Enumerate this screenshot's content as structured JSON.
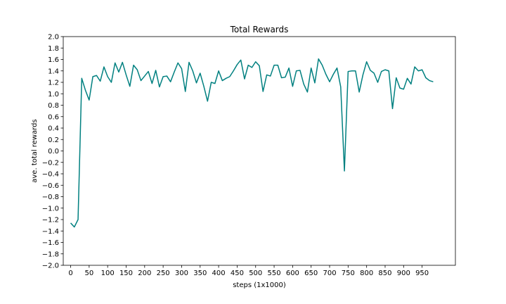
{
  "chart_data": {
    "type": "line",
    "title": "Total Rewards",
    "xlabel": "steps (1x1000)",
    "ylabel": "ave. total rewards",
    "xlim": [
      -20,
      1040
    ],
    "ylim": [
      -2.0,
      2.0
    ],
    "grid": false,
    "legend": "none",
    "xticks": [
      0,
      50,
      100,
      150,
      200,
      250,
      300,
      350,
      400,
      450,
      500,
      550,
      600,
      650,
      700,
      750,
      800,
      850,
      900,
      950
    ],
    "yticks": [
      -2.0,
      -1.8,
      -1.6,
      -1.4,
      -1.2,
      -1.0,
      -0.8,
      -0.6,
      -0.4,
      -0.2,
      0.0,
      0.2,
      0.4,
      0.6,
      0.8,
      1.0,
      1.2,
      1.4,
      1.6,
      1.8,
      2.0
    ],
    "series": [
      {
        "color": "#008080",
        "x": [
          0,
          10,
          20,
          30,
          40,
          50,
          60,
          70,
          80,
          90,
          100,
          110,
          120,
          130,
          140,
          150,
          160,
          170,
          180,
          190,
          200,
          210,
          220,
          230,
          240,
          250,
          260,
          270,
          280,
          290,
          300,
          310,
          320,
          330,
          340,
          350,
          360,
          370,
          380,
          390,
          400,
          410,
          420,
          430,
          440,
          450,
          460,
          470,
          480,
          490,
          500,
          510,
          520,
          530,
          540,
          550,
          560,
          570,
          580,
          590,
          600,
          610,
          620,
          630,
          640,
          650,
          660,
          670,
          680,
          690,
          700,
          710,
          720,
          730,
          740,
          750,
          760,
          770,
          780,
          790,
          800,
          810,
          820,
          830,
          840,
          850,
          860,
          870,
          880,
          890,
          900,
          910,
          920,
          930,
          940,
          950,
          960,
          970,
          980
        ],
        "y": [
          -1.26,
          -1.33,
          -1.2,
          1.27,
          1.06,
          0.89,
          1.3,
          1.32,
          1.22,
          1.47,
          1.3,
          1.2,
          1.54,
          1.38,
          1.55,
          1.33,
          1.13,
          1.5,
          1.42,
          1.23,
          1.31,
          1.39,
          1.18,
          1.41,
          1.12,
          1.3,
          1.31,
          1.21,
          1.38,
          1.54,
          1.44,
          1.04,
          1.55,
          1.4,
          1.19,
          1.36,
          1.13,
          0.87,
          1.2,
          1.18,
          1.4,
          1.23,
          1.27,
          1.3,
          1.4,
          1.51,
          1.59,
          1.26,
          1.5,
          1.46,
          1.56,
          1.49,
          1.04,
          1.33,
          1.31,
          1.5,
          1.5,
          1.28,
          1.29,
          1.45,
          1.13,
          1.4,
          1.41,
          1.17,
          1.03,
          1.45,
          1.19,
          1.61,
          1.5,
          1.34,
          1.21,
          1.34,
          1.45,
          1.12,
          -0.35,
          1.39,
          1.4,
          1.4,
          1.03,
          1.33,
          1.56,
          1.41,
          1.36,
          1.2,
          1.39,
          1.42,
          1.4,
          0.74,
          1.28,
          1.1,
          1.08,
          1.27,
          1.17,
          1.47,
          1.4,
          1.42,
          1.28,
          1.23,
          1.21
        ]
      }
    ]
  }
}
